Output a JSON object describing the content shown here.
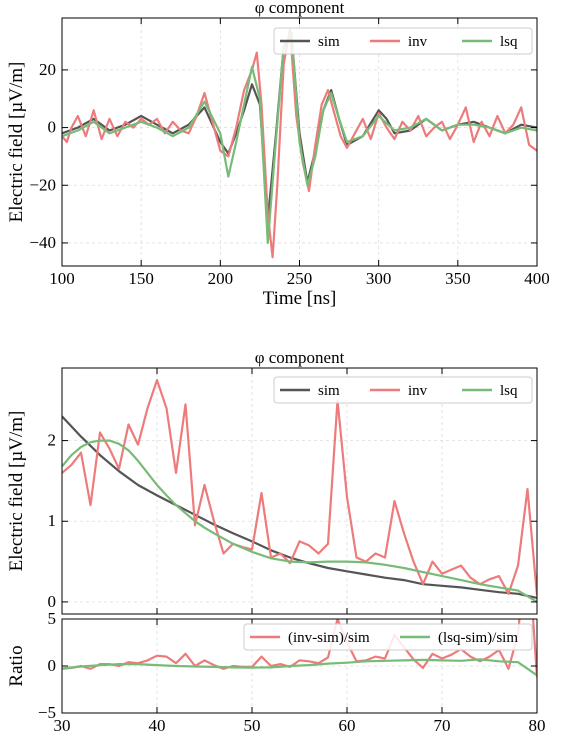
{
  "chart_data": [
    {
      "type": "line",
      "title": "φ component",
      "xlabel": "Time [ns]",
      "ylabel": "Electric field [µV/m]",
      "xlim": [
        100,
        400
      ],
      "ylim": [
        -48,
        38
      ],
      "xticks": [
        100,
        150,
        200,
        250,
        300,
        350,
        400
      ],
      "xtick_labels": [
        "100",
        "150",
        "200",
        "250",
        "300",
        "350",
        "400"
      ],
      "yticks": [
        -40,
        -20,
        0,
        20
      ],
      "ytick_labels": [
        "−40",
        "−20",
        "0",
        "20"
      ],
      "grid": true,
      "legend_position": "top-right",
      "series": [
        {
          "name": "sim",
          "color": "#555555",
          "x": [
            100,
            110,
            120,
            130,
            140,
            150,
            160,
            170,
            180,
            190,
            200,
            205,
            210,
            215,
            220,
            225,
            230,
            235,
            240,
            245,
            250,
            255,
            260,
            265,
            270,
            275,
            280,
            290,
            300,
            305,
            310,
            320,
            330,
            340,
            350,
            360,
            370,
            380,
            390,
            400
          ],
          "y": [
            -2,
            0,
            3,
            -1,
            1,
            4,
            1,
            -2,
            1,
            7,
            -5,
            -9,
            -2,
            6,
            15,
            8,
            -32,
            -3,
            28,
            32,
            -2,
            -19,
            -8,
            6,
            13,
            3,
            -6,
            -3,
            6,
            3,
            -2,
            -1,
            3,
            -1,
            1,
            2,
            0,
            -2,
            1,
            0
          ]
        },
        {
          "name": "inv",
          "color": "#ee7b7b",
          "x": [
            100,
            103,
            106,
            110,
            115,
            120,
            125,
            130,
            135,
            140,
            145,
            150,
            155,
            160,
            165,
            170,
            175,
            180,
            185,
            190,
            195,
            200,
            205,
            210,
            215,
            220,
            223,
            226,
            230,
            233,
            236,
            240,
            244,
            248,
            252,
            256,
            260,
            264,
            268,
            272,
            276,
            280,
            285,
            290,
            295,
            300,
            305,
            310,
            315,
            320,
            325,
            330,
            335,
            340,
            345,
            350,
            355,
            360,
            365,
            370,
            375,
            380,
            385,
            390,
            395,
            400
          ],
          "y": [
            -3,
            -5,
            0,
            4,
            -3,
            6,
            -4,
            3,
            -3,
            2,
            0,
            3,
            1,
            3,
            -2,
            2,
            -1,
            -2,
            4,
            12,
            2,
            -8,
            -10,
            0,
            13,
            20,
            26,
            8,
            -30,
            -45,
            -20,
            22,
            34,
            4,
            -12,
            -22,
            -6,
            8,
            13,
            5,
            -3,
            -7,
            -2,
            3,
            -4,
            5,
            0,
            -4,
            2,
            -1,
            4,
            -3,
            0,
            2,
            -4,
            1,
            7,
            -5,
            2,
            -3,
            4,
            -2,
            1,
            7,
            -6,
            -8
          ]
        },
        {
          "name": "lsq",
          "color": "#77bb77",
          "x": [
            100,
            110,
            120,
            130,
            140,
            150,
            160,
            170,
            180,
            190,
            200,
            205,
            210,
            215,
            220,
            225,
            230,
            235,
            240,
            245,
            250,
            255,
            260,
            265,
            270,
            275,
            280,
            290,
            300,
            310,
            320,
            330,
            340,
            350,
            360,
            370,
            380,
            390,
            400
          ],
          "y": [
            -3,
            -1,
            2,
            -2,
            0,
            2,
            0,
            -3,
            0,
            9,
            -2,
            -17,
            -5,
            8,
            21,
            10,
            -40,
            -5,
            28,
            33,
            -5,
            -20,
            -10,
            6,
            12,
            3,
            -5,
            -3,
            4,
            -1,
            0,
            3,
            -1,
            1,
            1,
            0,
            -2,
            0,
            -1
          ]
        }
      ]
    },
    {
      "type": "line",
      "title": "φ component",
      "xlabel": "",
      "ylabel": "Electric field [µV/m]",
      "xlim": [
        30,
        80
      ],
      "ylim": [
        -0.15,
        2.9
      ],
      "yticks": [
        0,
        1,
        2
      ],
      "ytick_labels": [
        "0",
        "1",
        "2"
      ],
      "grid": true,
      "legend_position": "top-right",
      "series": [
        {
          "name": "sim",
          "color": "#555555",
          "x": [
            30,
            32,
            34,
            36,
            38,
            40,
            42,
            44,
            46,
            48,
            50,
            52,
            54,
            56,
            58,
            60,
            62,
            64,
            66,
            68,
            70,
            72,
            74,
            76,
            78,
            80
          ],
          "y": [
            2.3,
            2.05,
            1.82,
            1.62,
            1.45,
            1.32,
            1.2,
            1.08,
            0.96,
            0.85,
            0.75,
            0.64,
            0.55,
            0.48,
            0.42,
            0.38,
            0.34,
            0.3,
            0.27,
            0.22,
            0.2,
            0.18,
            0.15,
            0.12,
            0.1,
            0.05
          ]
        },
        {
          "name": "inv",
          "color": "#ee7b7b",
          "x": [
            30,
            31,
            32,
            33,
            34,
            35,
            36,
            37,
            38,
            39,
            40,
            41,
            42,
            43,
            44,
            45,
            46,
            47,
            48,
            49,
            50,
            51,
            52,
            53,
            54,
            55,
            56,
            57,
            58,
            59,
            60,
            61,
            62,
            63,
            64,
            65,
            66,
            67,
            68,
            69,
            70,
            71,
            72,
            73,
            74,
            75,
            76,
            77,
            78,
            79,
            80
          ],
          "y": [
            1.6,
            1.7,
            1.85,
            1.2,
            2.1,
            1.9,
            1.65,
            2.2,
            1.95,
            2.4,
            2.75,
            2.4,
            1.6,
            2.45,
            0.95,
            1.45,
            1.0,
            0.6,
            0.72,
            0.68,
            0.65,
            1.35,
            0.55,
            0.6,
            0.48,
            0.75,
            0.7,
            0.6,
            0.72,
            2.5,
            1.3,
            0.55,
            0.5,
            0.6,
            0.55,
            1.25,
            0.85,
            0.5,
            0.22,
            0.5,
            0.35,
            0.4,
            0.45,
            0.3,
            0.22,
            0.28,
            0.32,
            0.1,
            0.45,
            1.4,
            0.08
          ]
        },
        {
          "name": "lsq",
          "color": "#77bb77",
          "x": [
            30,
            31,
            32,
            33,
            34,
            35,
            36,
            37,
            38,
            39,
            40,
            41,
            42,
            43,
            44,
            45,
            46,
            48,
            50,
            52,
            54,
            56,
            58,
            60,
            62,
            64,
            66,
            68,
            70,
            72,
            74,
            76,
            78,
            80
          ],
          "y": [
            1.68,
            1.82,
            1.92,
            1.98,
            2.0,
            2.0,
            1.96,
            1.88,
            1.75,
            1.6,
            1.45,
            1.32,
            1.2,
            1.1,
            1.0,
            0.92,
            0.85,
            0.72,
            0.62,
            0.54,
            0.5,
            0.49,
            0.5,
            0.5,
            0.49,
            0.46,
            0.42,
            0.37,
            0.32,
            0.27,
            0.22,
            0.18,
            0.14,
            0.0
          ]
        }
      ]
    },
    {
      "type": "line",
      "title": "",
      "xlabel": "",
      "ylabel": "Ratio",
      "xlim": [
        30,
        80
      ],
      "ylim": [
        -5,
        5
      ],
      "xticks": [
        30,
        40,
        50,
        60,
        70,
        80
      ],
      "xtick_labels": [
        "30",
        "40",
        "50",
        "60",
        "70",
        "80"
      ],
      "yticks": [
        -5,
        0,
        5
      ],
      "ytick_labels": [
        "−5",
        "0",
        "5"
      ],
      "grid": true,
      "legend_position": "top-right",
      "series": [
        {
          "name": "(inv-sim)/sim",
          "color": "#ee7b7b",
          "x": [
            30,
            31,
            32,
            33,
            34,
            35,
            36,
            37,
            38,
            39,
            40,
            41,
            42,
            43,
            44,
            45,
            46,
            47,
            48,
            49,
            50,
            51,
            52,
            53,
            54,
            55,
            56,
            57,
            58,
            59,
            60,
            61,
            62,
            63,
            64,
            65,
            66,
            67,
            68,
            69,
            70,
            71,
            72,
            73,
            74,
            75,
            76,
            77,
            78,
            79,
            80
          ],
          "y": [
            -0.3,
            -0.2,
            0.0,
            -0.3,
            0.2,
            0.2,
            0.0,
            0.4,
            0.3,
            0.6,
            1.1,
            1.0,
            0.3,
            1.3,
            0.0,
            0.6,
            0.1,
            -0.3,
            0.0,
            -0.1,
            -0.1,
            1.0,
            0.0,
            0.2,
            -0.1,
            0.6,
            0.5,
            0.3,
            0.9,
            5.0,
            2.5,
            0.5,
            0.6,
            1.0,
            0.8,
            3.3,
            2.0,
            0.7,
            -0.2,
            1.3,
            0.8,
            1.2,
            1.8,
            1.0,
            0.5,
            1.0,
            1.7,
            -0.3,
            3.4,
            14.0,
            -1.2
          ]
        },
        {
          "name": "(lsq-sim)/sim",
          "color": "#77bb77",
          "x": [
            30,
            32,
            34,
            36,
            38,
            40,
            42,
            44,
            46,
            48,
            50,
            52,
            54,
            56,
            58,
            60,
            62,
            64,
            66,
            68,
            70,
            72,
            74,
            76,
            78,
            80
          ],
          "y": [
            -0.27,
            -0.05,
            0.08,
            0.2,
            0.2,
            0.1,
            0.0,
            -0.05,
            -0.1,
            -0.15,
            -0.17,
            -0.15,
            0.0,
            0.1,
            0.25,
            0.35,
            0.5,
            0.55,
            0.6,
            0.65,
            0.6,
            0.55,
            0.7,
            0.5,
            0.4,
            -1.0
          ]
        }
      ]
    }
  ]
}
